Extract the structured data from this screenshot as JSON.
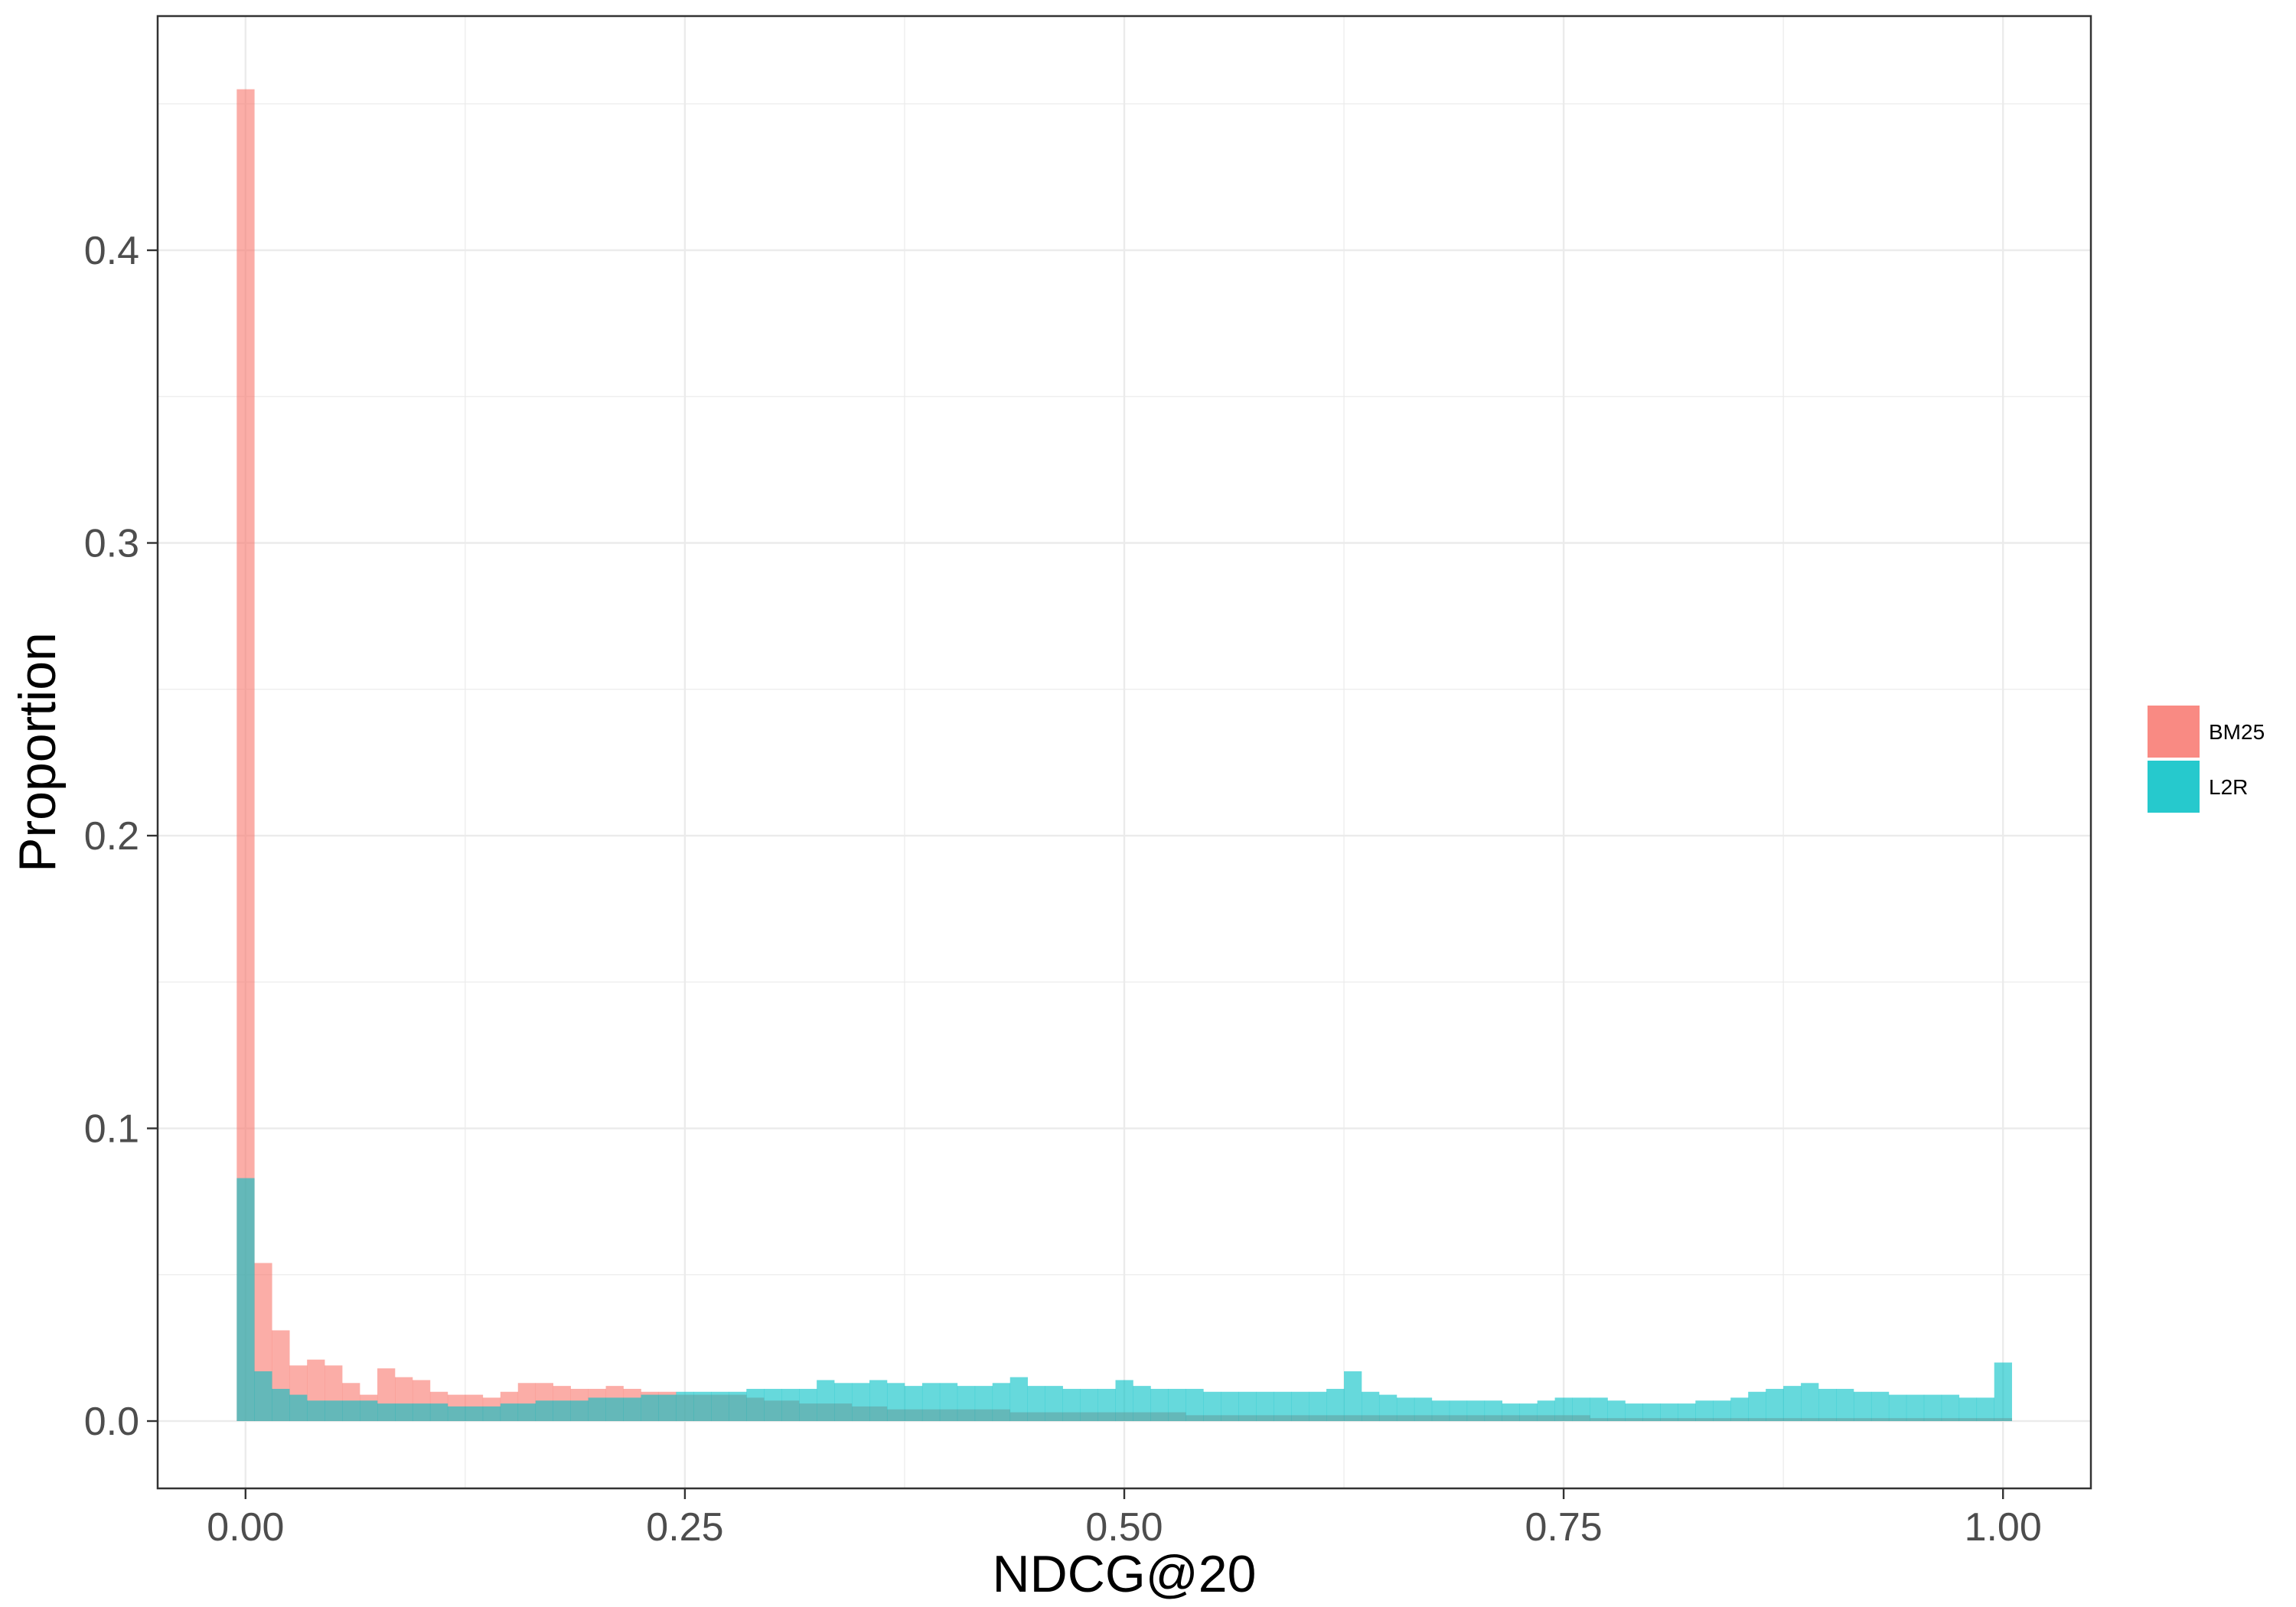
{
  "chart_data": {
    "type": "histogram",
    "title": "",
    "xlabel": "NDCG@20",
    "ylabel": "Proportion",
    "xlim": [
      -0.05,
      1.05
    ],
    "ylim": [
      -0.023,
      0.48
    ],
    "x_ticks": [
      {
        "value": 0,
        "label": "0.00"
      },
      {
        "value": 0.25,
        "label": "0.25"
      },
      {
        "value": 0.5,
        "label": "0.50"
      },
      {
        "value": 0.75,
        "label": "0.75"
      },
      {
        "value": 1,
        "label": "1.00"
      }
    ],
    "y_ticks": [
      {
        "value": 0,
        "label": "0.0"
      },
      {
        "value": 0.1,
        "label": "0.1"
      },
      {
        "value": 0.2,
        "label": "0.2"
      },
      {
        "value": 0.3,
        "label": "0.3"
      },
      {
        "value": 0.4,
        "label": "0.4"
      }
    ],
    "grid": true,
    "legend_position": "right",
    "bin_start": -0.005,
    "bin_width": 0.01,
    "series": [
      {
        "name": "BM25",
        "color": "#F8766D",
        "values": [
          0.455,
          0.054,
          0.031,
          0.019,
          0.021,
          0.019,
          0.013,
          0.009,
          0.018,
          0.015,
          0.014,
          0.01,
          0.009,
          0.009,
          0.008,
          0.01,
          0.013,
          0.013,
          0.012,
          0.011,
          0.011,
          0.012,
          0.011,
          0.01,
          0.01,
          0.009,
          0.009,
          0.009,
          0.009,
          0.008,
          0.007,
          0.007,
          0.006,
          0.006,
          0.006,
          0.005,
          0.005,
          0.004,
          0.004,
          0.004,
          0.004,
          0.004,
          0.004,
          0.004,
          0.003,
          0.003,
          0.003,
          0.003,
          0.003,
          0.003,
          0.003,
          0.003,
          0.003,
          0.003,
          0.002,
          0.002,
          0.002,
          0.002,
          0.002,
          0.002,
          0.002,
          0.002,
          0.002,
          0.002,
          0.002,
          0.002,
          0.002,
          0.002,
          0.002,
          0.002,
          0.002,
          0.002,
          0.002,
          0.002,
          0.002,
          0.002,
          0.002,
          0.001,
          0.001,
          0.001,
          0.001,
          0.001,
          0.001,
          0.001,
          0.001,
          0.001,
          0.001,
          0.001,
          0.001,
          0.001,
          0.001,
          0.001,
          0.001,
          0.001,
          0.001,
          0.001,
          0.001,
          0.001,
          0.001,
          0.001,
          0.001
        ]
      },
      {
        "name": "L2R",
        "color": "#00BFC4",
        "values": [
          0.083,
          0.017,
          0.011,
          0.009,
          0.007,
          0.007,
          0.007,
          0.007,
          0.006,
          0.006,
          0.006,
          0.006,
          0.005,
          0.005,
          0.005,
          0.006,
          0.006,
          0.007,
          0.007,
          0.007,
          0.008,
          0.008,
          0.008,
          0.009,
          0.009,
          0.01,
          0.01,
          0.01,
          0.01,
          0.011,
          0.011,
          0.011,
          0.011,
          0.014,
          0.013,
          0.013,
          0.014,
          0.013,
          0.012,
          0.013,
          0.013,
          0.012,
          0.012,
          0.013,
          0.015,
          0.012,
          0.012,
          0.011,
          0.011,
          0.011,
          0.014,
          0.012,
          0.011,
          0.011,
          0.011,
          0.01,
          0.01,
          0.01,
          0.01,
          0.01,
          0.01,
          0.01,
          0.011,
          0.017,
          0.01,
          0.009,
          0.008,
          0.008,
          0.007,
          0.007,
          0.007,
          0.007,
          0.006,
          0.006,
          0.007,
          0.008,
          0.008,
          0.008,
          0.007,
          0.006,
          0.006,
          0.006,
          0.006,
          0.007,
          0.007,
          0.008,
          0.01,
          0.011,
          0.012,
          0.013,
          0.011,
          0.011,
          0.01,
          0.01,
          0.009,
          0.009,
          0.009,
          0.009,
          0.008,
          0.008,
          0.02
        ]
      }
    ]
  }
}
